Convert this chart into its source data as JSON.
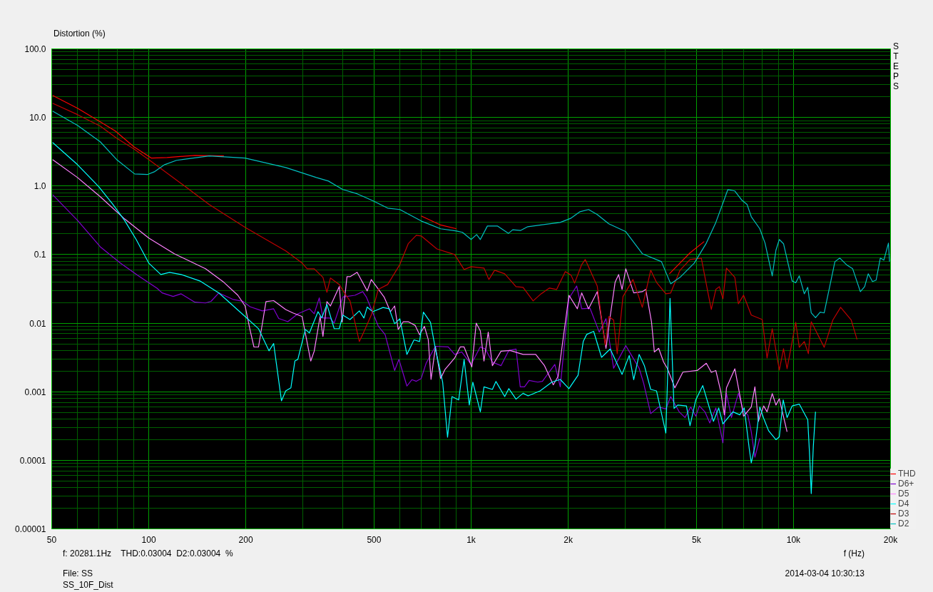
{
  "chart_data": {
    "type": "line",
    "ylabel": "Distortion (%)",
    "xlabel": "f (Hz)",
    "log": "xy",
    "grid": true,
    "legend": "bottom right",
    "xlim": [
      50,
      20000
    ],
    "ylim": [
      1e-05,
      100
    ],
    "xticks": [
      50,
      100,
      200,
      500,
      {
        "value": 1000,
        "label": "1k"
      },
      {
        "value": 2000,
        "label": "2k"
      },
      {
        "value": 5000,
        "label": "5k"
      },
      {
        "value": 10000,
        "label": "10k"
      },
      {
        "value": 20000,
        "label": "20k"
      }
    ],
    "yticks": [
      {
        "value": 1e-05,
        "label": "0.00001"
      },
      0.0001,
      0.001,
      0.01,
      0.1,
      {
        "value": 1,
        "label": "1.0"
      },
      {
        "value": 10,
        "label": "10.0"
      },
      {
        "value": 100,
        "label": "100.0"
      }
    ],
    "annotations": [
      "STEPS",
      "f: 20281.1Hz    THD:0.03004  D2:0.03004  %",
      "File: SS",
      "SS_10F_Dist",
      "2014-03-04 10:30:13"
    ],
    "series": [
      {
        "name": "THD",
        "color": "#ff0000",
        "x": [
          50.3,
          60.1,
          70.7,
          78.8,
          89.9,
          102,
          114,
          139,
          171,
          189,
          400,
          700,
          804,
          901,
          2000,
          4120,
          4775,
          5283
        ],
        "values": [
          21.0,
          13.6,
          8.64,
          6.33,
          3.74,
          2.55,
          2.6,
          2.8,
          2.74,
          null,
          null,
          0.366,
          0.27,
          0.238,
          null,
          0.0525,
          0.106,
          0.155
        ]
      },
      {
        "name": "D6+",
        "color": "#8000d0",
        "x": [
          50.3,
          60.1,
          70.7,
          81.6,
          92.9,
          106,
          110,
          119,
          126,
          139,
          150,
          156,
          165,
          183,
          196,
          206,
          225,
          244,
          253,
          270,
          290,
          315,
          326,
          338,
          347,
          365,
          376,
          400,
          436,
          461,
          473,
          515,
          541,
          579,
          597,
          632,
          655,
          676,
          700,
          725,
          775,
          849,
          889,
          935,
          1000,
          1067,
          1107,
          1164,
          1238,
          1309,
          1378,
          1420,
          1464,
          1513,
          1610,
          1664,
          1818,
          1890,
          2011,
          2125,
          2203,
          2338,
          2497,
          2620,
          2767,
          3018,
          3320,
          3431,
          3606,
          3817,
          4018,
          4159,
          4418,
          4607,
          4800,
          4975,
          5105,
          5310,
          5500,
          5741,
          6039,
          6194,
          6420,
          6745,
          6998,
          7216,
          7396,
          7590,
          7860
        ],
        "values": [
          0.75,
          0.316,
          0.13,
          0.0752,
          0.0489,
          0.0324,
          0.0276,
          0.0245,
          0.0268,
          0.0202,
          0.0197,
          0.0208,
          0.0276,
          0.0221,
          0.0208,
          0.0174,
          0.0151,
          0.0162,
          0.0117,
          0.0105,
          0.0137,
          0.0162,
          0.0137,
          0.0234,
          0.0119,
          0.0119,
          0.01,
          0.0241,
          0.0255,
          0.0288,
          0.0241,
          0.0091,
          0.0068,
          0.00204,
          0.00296,
          0.00121,
          0.0015,
          0.00142,
          0.00156,
          0.0026,
          0.0046,
          0.0045,
          0.0035,
          0.0038,
          0.0025,
          0.0045,
          0.0042,
          0.0027,
          0.0024,
          0.004,
          0.0042,
          0.00118,
          0.00118,
          0.00146,
          0.00138,
          0.00142,
          0.0025,
          0.00118,
          0.023,
          0.0348,
          0.0162,
          0.0165,
          0.0074,
          0.0116,
          0.0022,
          0.0047,
          0.0022,
          0.00131,
          0.00048,
          0.0006,
          0.00056,
          0.00085,
          0.00051,
          0.00042,
          0.0006,
          0.00044,
          0.00062,
          0.00051,
          0.00035,
          0.00058,
          0.00018,
          0.00095,
          0.00042,
          0.00095,
          0.00052,
          0.00046,
          0.00026,
          0.000111,
          0.00021
        ]
      },
      {
        "name": "D5",
        "color": "#ff80ff",
        "x": [
          50.3,
          60.1,
          70.7,
          84.1,
          100,
          120,
          150,
          171,
          189,
          199,
          206,
          212,
          219,
          231,
          244,
          266,
          280,
          299,
          318,
          326,
          340,
          347,
          357,
          366,
          390,
          398,
          412,
          421,
          443,
          476,
          490,
          537,
          562,
          579,
          594,
          616,
          638,
          670,
          692,
          716,
          736,
          751,
          775,
          804,
          829,
          889,
          925,
          951,
          1005,
          1037,
          1068,
          1096,
          1130,
          1164,
          1238,
          1320,
          1449,
          1586,
          1689,
          1798,
          1861,
          2011,
          2135,
          2203,
          2313,
          2461,
          2620,
          2700,
          2796,
          2867,
          2939,
          3018,
          3194,
          3396,
          3481,
          3626,
          3701,
          3817,
          3955,
          4059,
          4285,
          4537,
          5026,
          5365,
          5559,
          5741,
          5950,
          6102,
          6194,
          6577,
          6850,
          6998,
          7396,
          7590,
          7780,
          8080,
          8279,
          8590,
          8820,
          9036,
          9550
        ],
        "values": [
          2.43,
          1.33,
          0.698,
          0.332,
          0.174,
          0.103,
          0.0621,
          0.0394,
          0.0255,
          0.0178,
          0.0081,
          0.00449,
          0.00449,
          0.0206,
          0.0213,
          0.0158,
          0.0141,
          0.0125,
          0.0028,
          0.0039,
          0.0125,
          0.0064,
          0.0206,
          0.0178,
          0.0342,
          0.0104,
          0.0476,
          0.0476,
          0.0551,
          0.0295,
          0.0432,
          0.0241,
          0.0147,
          0.0178,
          0.0081,
          0.0105,
          0.0105,
          0.0093,
          0.0068,
          0.009,
          0.0058,
          0.00151,
          0.0045,
          0.00156,
          0.0021,
          0.0031,
          0.0045,
          0.0045,
          0.0023,
          0.01,
          0.0077,
          0.0028,
          0.0074,
          0.0024,
          0.0039,
          0.004,
          0.0035,
          0.0035,
          0.0024,
          0.00126,
          0.00167,
          0.0255,
          0.0162,
          0.0276,
          0.0162,
          0.0288,
          0.0043,
          0.0125,
          0.0394,
          0.0512,
          0.031,
          0.0621,
          0.0276,
          0.0288,
          0.031,
          0.0105,
          0.0038,
          0.0043,
          0.0027,
          0.0022,
          0.00114,
          0.00193,
          0.00204,
          0.0026,
          0.00192,
          0.00204,
          0.001,
          0.00046,
          0.00114,
          0.00216,
          0.00079,
          0.00044,
          0.0006,
          0.00118,
          0.00037,
          0.00062,
          0.00051,
          0.00094,
          0.00064,
          0.00079,
          0.00026
        ]
      },
      {
        "name": "D4",
        "color": "#00ffff",
        "x": [
          50.3,
          60.1,
          70.0,
          77.2,
          84.1,
          91.4,
          100,
          109,
          116,
          126,
          144,
          165,
          183,
          199,
          219,
          236,
          244,
          258,
          266,
          276,
          284,
          290,
          306,
          315,
          335,
          344,
          357,
          376,
          390,
          400,
          421,
          450,
          465,
          476,
          495,
          533,
          557,
          579,
          601,
          632,
          665,
          692,
          711,
          748,
          775,
          816,
          845,
          872,
          915,
          951,
          987,
          1012,
          1068,
          1096,
          1164,
          1194,
          1271,
          1309,
          1378,
          1449,
          1502,
          1637,
          1779,
          1890,
          2011,
          2146,
          2227,
          2283,
          2399,
          2538,
          2700,
          2939,
          3093,
          3194,
          3320,
          3447,
          3606,
          3758,
          4018,
          4140,
          4260,
          4373,
          4654,
          4775,
          4975,
          5230,
          5645,
          5860,
          6039,
          6486,
          6815,
          7034,
          7290,
          7396,
          7590,
          7860,
          8080,
          8370,
          8820,
          9036,
          9290,
          9550,
          9900,
          10420,
          11070,
          11230,
          11350,
          11520,
          11700
        ],
        "values": [
          4.31,
          2.05,
          0.976,
          0.549,
          0.316,
          0.166,
          0.0752,
          0.0512,
          0.0551,
          0.0512,
          0.0413,
          0.0276,
          0.0178,
          0.0125,
          0.0083,
          0.00395,
          0.00505,
          0.000738,
          0.00103,
          0.00114,
          0.00282,
          0.00296,
          0.0081,
          0.0072,
          0.0147,
          0.0119,
          0.0187,
          0.00832,
          0.00832,
          0.0131,
          0.0113,
          0.0151,
          0.0119,
          0.0172,
          0.0147,
          0.0169,
          0.0162,
          0.0098,
          0.0116,
          0.0035,
          0.0057,
          0.0054,
          0.0145,
          0.0103,
          0.0042,
          0.00138,
          0.000217,
          0.00085,
          0.00076,
          0.00296,
          0.00064,
          0.00138,
          0.00051,
          0.00118,
          0.00108,
          0.00141,
          0.00085,
          0.00111,
          0.00078,
          0.00095,
          0.00087,
          0.00103,
          0.00138,
          0.00151,
          0.00111,
          0.00174,
          0.0054,
          0.00685,
          0.0076,
          0.00317,
          0.0042,
          0.00179,
          0.00338,
          0.0015,
          0.0035,
          0.0024,
          0.00108,
          0.00103,
          0.00025,
          0.023,
          0.00057,
          0.00064,
          0.00062,
          0.00032,
          0.00076,
          0.00123,
          0.00037,
          0.00058,
          0.00034,
          0.00051,
          0.00046,
          0.00058,
          0.000147,
          9.17e-05,
          0.000159,
          0.0006,
          0.00041,
          0.00027,
          0.0002,
          0.00022,
          0.00076,
          0.00042,
          0.00062,
          0.00066,
          0.00039,
          0.000108,
          3.27e-05,
          0.000159,
          0.00051
        ]
      },
      {
        "name": "D3",
        "color": "#c00000",
        "x": [
          50.3,
          60.1,
          70.7,
          79.5,
          89.9,
          100,
          130,
          154,
          199,
          266,
          299,
          310,
          326,
          347,
          357,
          366,
          390,
          406,
          421,
          450,
          461,
          490,
          515,
          551,
          601,
          638,
          676,
          700,
          783,
          889,
          951,
          1000,
          1096,
          1135,
          1183,
          1271,
          1378,
          1449,
          1557,
          1648,
          1750,
          1842,
          1959,
          2042,
          2094,
          2203,
          2259,
          2461,
          2606,
          2673,
          2767,
          2838,
          2958,
          3177,
          3396,
          3606,
          3758,
          4018,
          4159,
          4446,
          4775,
          5176,
          5420,
          5559,
          5741,
          5888,
          6039,
          6194,
          6577,
          6745,
          6998,
          7396,
          7998,
          8279,
          8590,
          9036,
          9311,
          9550,
          10160,
          10420,
          10800,
          11120,
          11350,
          12450,
          13240,
          14000,
          15100,
          15740
        ],
        "values": [
          16.1,
          11.0,
          7.48,
          4.98,
          3.48,
          2.43,
          0.976,
          0.536,
          0.249,
          0.113,
          0.0752,
          0.0621,
          0.0621,
          0.0466,
          0.0282,
          0.0455,
          0.0366,
          0.0268,
          0.0211,
          0.0054,
          0.00685,
          0.0131,
          0.031,
          0.0366,
          0.0717,
          0.144,
          0.191,
          0.187,
          0.121,
          0.1,
          0.0606,
          0.0667,
          0.0636,
          0.0433,
          0.0592,
          0.0525,
          0.0341,
          0.0333,
          0.0211,
          0.0268,
          0.0325,
          0.031,
          0.0564,
          0.05,
          0.0384,
          0.0717,
          0.0848,
          0.0349,
          0.00478,
          0.0125,
          0.0111,
          0.00359,
          0.0244,
          0.0433,
          0.017,
          0.0592,
          0.0394,
          0.0268,
          0.0275,
          0.0592,
          0.0848,
          0.0889,
          0.0288,
          0.0158,
          0.031,
          0.0341,
          0.0227,
          0.0636,
          0.0466,
          0.0192,
          0.0256,
          0.0131,
          0.0113,
          0.0031,
          0.0083,
          0.00207,
          0.00424,
          0.00217,
          0.0103,
          0.00445,
          0.0054,
          0.00359,
          0.0105,
          0.00445,
          0.0111,
          0.017,
          0.0111,
          0.0058
        ]
      },
      {
        "name": "D2",
        "color": "#00c0c0",
        "x": [
          50.3,
          60.1,
          70.7,
          79.5,
          90.4,
          99.0,
          104,
          112,
          122,
          154,
          199,
          266,
          331,
          361,
          400,
          443,
          497,
          551,
          601,
          700,
          804,
          901,
          940,
          1000,
          1040,
          1068,
          1123,
          1206,
          1306,
          1346,
          1425,
          1499,
          1888,
          2042,
          2176,
          2313,
          2461,
          2673,
          3018,
          3396,
          3894,
          4159,
          4446,
          4922,
          5365,
          5741,
          6257,
          6577,
          6920,
          7180,
          7396,
          7860,
          8160,
          8590,
          8820,
          9036,
          9311,
          9900,
          10160,
          10420,
          10800,
          11070,
          11350,
          11700,
          12100,
          12450,
          13440,
          13920,
          14660,
          15260,
          16120,
          16620,
          17050,
          17580,
          18040,
          18590,
          19070,
          19700,
          19860
        ],
        "values": [
          12.4,
          7.67,
          4.42,
          2.43,
          1.5,
          1.47,
          1.61,
          2.05,
          2.37,
          2.74,
          2.55,
          1.86,
          1.33,
          1.18,
          0.887,
          0.77,
          0.605,
          0.476,
          0.454,
          0.309,
          0.238,
          0.221,
          0.211,
          0.166,
          0.196,
          0.166,
          0.261,
          0.261,
          0.204,
          0.23,
          0.225,
          0.255,
          0.294,
          0.34,
          0.422,
          0.454,
          0.384,
          0.281,
          0.216,
          0.103,
          0.0788,
          0.0375,
          0.0466,
          0.0752,
          0.147,
          0.294,
          0.887,
          0.846,
          0.619,
          0.536,
          0.357,
          0.238,
          0.147,
          0.0489,
          0.116,
          0.166,
          0.144,
          0.0413,
          0.0388,
          0.0489,
          0.0268,
          0.0333,
          0.0141,
          0.012,
          0.0145,
          0.0141,
          0.0788,
          0.0889,
          0.07,
          0.0621,
          0.0288,
          0.0341,
          0.0525,
          0.0404,
          0.0424,
          0.0889,
          0.083,
          0.147,
          0.0788
        ]
      }
    ]
  }
}
